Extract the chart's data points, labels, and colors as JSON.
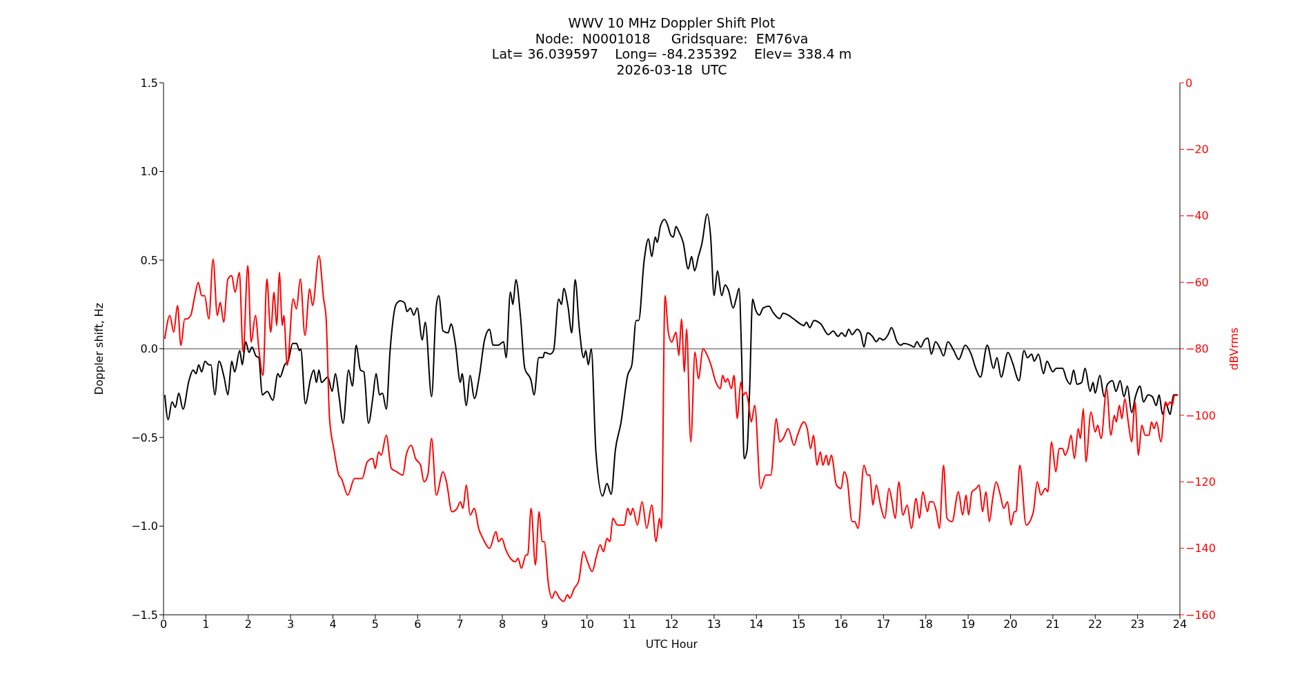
{
  "chart_data": {
    "type": "line",
    "title": "WWV 10 MHz Doppler Shift Plot",
    "subtitle": "Node:  N0001018     Gridsquare:  EM76va\nLat= 36.039597    Long= -84.235392    Elev= 338.4 m\n2026-03-18  UTC",
    "xlabel": "UTC Hour",
    "ylabel": "Doppler shift, Hz",
    "y2label": "dBVrms",
    "xlim": [
      0,
      24
    ],
    "xticks": [
      0,
      1,
      2,
      3,
      4,
      5,
      6,
      7,
      8,
      9,
      10,
      11,
      12,
      13,
      14,
      15,
      16,
      17,
      18,
      19,
      20,
      21,
      22,
      23,
      24
    ],
    "ylim": [
      -1.5,
      1.5
    ],
    "yticks": [
      {
        "value": -1.5,
        "label": "−1.5"
      },
      {
        "value": -1,
        "label": "−1.0"
      },
      {
        "value": -0.5,
        "label": "−0.5"
      },
      {
        "value": 0,
        "label": "0.0"
      },
      {
        "value": 0.5,
        "label": "0.5"
      },
      {
        "value": 1,
        "label": "1.0"
      },
      {
        "value": 1.5,
        "label": "1.5"
      }
    ],
    "y2lim": [
      -160,
      0
    ],
    "y2ticks": [
      {
        "value": -160,
        "label": "−160"
      },
      {
        "value": -140,
        "label": "−140"
      },
      {
        "value": -120,
        "label": "−120"
      },
      {
        "value": -100,
        "label": "−100"
      },
      {
        "value": -80,
        "label": "−80"
      },
      {
        "value": -60,
        "label": "−60"
      },
      {
        "value": -40,
        "label": "−40"
      },
      {
        "value": -20,
        "label": "−20"
      },
      {
        "value": 0,
        "label": "0"
      }
    ],
    "ref_lines": [
      {
        "axis": "y",
        "value": 0,
        "color": "#808080"
      }
    ],
    "series": [
      {
        "color": "#000000",
        "x": [
          0.03,
          0.11,
          0.2,
          0.28,
          0.36,
          0.46,
          0.6,
          0.7,
          0.77,
          0.83,
          0.9,
          0.98,
          1.07,
          1.12,
          1.21,
          1.31,
          1.43,
          1.52,
          1.61,
          1.68,
          1.8,
          1.86,
          1.94,
          2.02,
          2.09,
          2.18,
          2.25,
          2.33,
          2.45,
          2.58,
          2.7,
          2.75,
          2.86,
          2.94,
          3.05,
          3.14,
          3.21,
          3.24,
          3.35,
          3.47,
          3.55,
          3.61,
          3.67,
          3.73,
          3.88,
          3.98,
          4.06,
          4.14,
          4.24,
          4.37,
          4.46,
          4.55,
          4.65,
          4.73,
          4.84,
          4.94,
          5.02,
          5.1,
          5.17,
          5.26,
          5.35,
          5.49,
          5.59,
          5.69,
          5.75,
          5.83,
          5.91,
          5.99,
          6.11,
          6.18,
          6.33,
          6.44,
          6.5,
          6.6,
          6.72,
          6.79,
          6.89,
          7.01,
          7.05,
          7.15,
          7.24,
          7.34,
          7.46,
          7.58,
          7.7,
          7.78,
          7.9,
          8.03,
          8.09,
          8.19,
          8.25,
          8.32,
          8.43,
          8.53,
          8.68,
          8.75,
          8.86,
          8.96,
          9.0,
          9.13,
          9.21,
          9.33,
          9.4,
          9.45,
          9.55,
          9.64,
          9.72,
          9.82,
          9.92,
          9.97,
          10.03,
          10.1,
          10.21,
          10.37,
          10.47,
          10.57,
          10.67,
          10.8,
          10.96,
          11.06,
          11.16,
          11.22,
          11.35,
          11.45,
          11.53,
          11.61,
          11.66,
          11.73,
          11.83,
          11.9,
          11.98,
          12.04,
          12.1,
          12.17,
          12.27,
          12.39,
          12.47,
          12.54,
          12.63,
          12.71,
          12.84,
          12.92,
          13.0,
          13.08,
          13.18,
          13.26,
          13.34,
          13.45,
          13.53,
          13.59,
          13.65,
          13.71,
          13.78,
          13.84,
          13.91,
          13.98,
          14.07,
          14.16,
          14.3,
          14.38,
          14.55,
          14.63,
          14.75,
          14.87,
          15.04,
          15.12,
          15.18,
          15.26,
          15.36,
          15.52,
          15.7,
          15.81,
          15.93,
          16.01,
          16.1,
          16.18,
          16.26,
          16.38,
          16.46,
          16.54,
          16.62,
          16.74,
          16.83,
          16.91,
          16.99,
          17.11,
          17.19,
          17.32,
          17.41,
          17.48,
          17.64,
          17.72,
          17.79,
          17.88,
          17.97,
          18.05,
          18.13,
          18.23,
          18.34,
          18.42,
          18.52,
          18.66,
          18.78,
          18.93,
          19.07,
          19.18,
          19.29,
          19.45,
          19.6,
          19.68,
          19.78,
          19.94,
          20.05,
          20.2,
          20.32,
          20.4,
          20.5,
          20.56,
          20.66,
          20.78,
          20.86,
          21.0,
          21.08,
          21.23,
          21.32,
          21.41,
          21.49,
          21.57,
          21.68,
          21.76,
          21.88,
          21.95,
          22.0,
          22.11,
          22.21,
          22.29,
          22.41,
          22.49,
          22.59,
          22.68,
          22.76,
          22.86,
          22.95,
          23.06,
          23.14,
          23.25,
          23.35,
          23.44,
          23.51,
          23.59,
          23.67,
          23.77,
          23.85,
          23.95
        ],
        "values": [
          -0.26,
          -0.4,
          -0.3,
          -0.33,
          -0.25,
          -0.34,
          -0.18,
          -0.12,
          -0.14,
          -0.09,
          -0.13,
          -0.07,
          -0.09,
          -0.09,
          -0.26,
          -0.07,
          -0.16,
          -0.26,
          -0.07,
          -0.13,
          -0.01,
          -0.09,
          0.04,
          -0.02,
          0.01,
          -0.04,
          -0.05,
          -0.26,
          -0.24,
          -0.29,
          -0.14,
          -0.16,
          -0.09,
          -0.07,
          0.03,
          0.03,
          -0.01,
          0.0,
          -0.31,
          -0.17,
          -0.12,
          -0.19,
          -0.12,
          -0.19,
          -0.16,
          -0.24,
          -0.14,
          -0.26,
          -0.42,
          -0.12,
          -0.21,
          0.02,
          -0.12,
          -0.13,
          -0.42,
          -0.28,
          -0.14,
          -0.26,
          -0.25,
          -0.34,
          -0.01,
          0.25,
          0.27,
          0.26,
          0.21,
          0.23,
          0.19,
          0.23,
          0.05,
          0.15,
          -0.27,
          0.24,
          0.3,
          0.1,
          0.09,
          0.14,
          0.03,
          -0.19,
          -0.14,
          -0.32,
          -0.15,
          -0.28,
          -0.15,
          0.05,
          0.11,
          0.02,
          0.02,
          0.04,
          -0.05,
          0.32,
          0.25,
          0.39,
          0.18,
          -0.11,
          -0.18,
          -0.26,
          -0.05,
          -0.05,
          -0.02,
          -0.03,
          -0.01,
          0.28,
          0.25,
          0.34,
          0.24,
          0.09,
          0.39,
          0.11,
          -0.05,
          -0.01,
          -0.09,
          0.0,
          -0.58,
          -0.83,
          -0.76,
          -0.82,
          -0.57,
          -0.42,
          -0.15,
          -0.09,
          0.16,
          0.16,
          0.5,
          0.62,
          0.52,
          0.63,
          0.6,
          0.69,
          0.73,
          0.7,
          0.64,
          0.63,
          0.69,
          0.66,
          0.6,
          0.45,
          0.52,
          0.44,
          0.52,
          0.59,
          0.76,
          0.63,
          0.3,
          0.44,
          0.3,
          0.36,
          0.33,
          0.23,
          0.29,
          0.34,
          -0.03,
          -0.62,
          -0.57,
          -0.23,
          0.28,
          0.22,
          0.19,
          0.23,
          0.24,
          0.21,
          0.17,
          0.2,
          0.19,
          0.17,
          0.14,
          0.13,
          0.15,
          0.12,
          0.16,
          0.14,
          0.08,
          0.1,
          0.07,
          0.09,
          0.07,
          0.11,
          0.08,
          0.11,
          0.09,
          0.01,
          0.09,
          0.07,
          0.04,
          0.06,
          0.05,
          0.08,
          0.12,
          0.04,
          0.02,
          0.03,
          0.02,
          0.01,
          0.04,
          0.01,
          0.05,
          0.06,
          -0.03,
          0.04,
          0.0,
          -0.04,
          0.04,
          -0.01,
          -0.06,
          0.02,
          -0.03,
          -0.11,
          -0.16,
          0.02,
          -0.11,
          -0.05,
          -0.16,
          -0.02,
          -0.08,
          -0.18,
          -0.01,
          -0.05,
          -0.03,
          -0.07,
          -0.03,
          -0.14,
          -0.07,
          -0.13,
          -0.11,
          -0.11,
          -0.17,
          -0.2,
          -0.12,
          -0.2,
          -0.19,
          -0.11,
          -0.24,
          -0.19,
          -0.25,
          -0.15,
          -0.27,
          -0.2,
          -0.18,
          -0.24,
          -0.18,
          -0.27,
          -0.21,
          -0.36,
          -0.27,
          -0.21,
          -0.3,
          -0.26,
          -0.27,
          -0.32,
          -0.26,
          -0.37,
          -0.31,
          -0.37,
          -0.26,
          -0.26
        ]
      },
      {
        "color": "#ff0000",
        "axis": "y2",
        "x": [
          0.03,
          0.15,
          0.24,
          0.33,
          0.41,
          0.5,
          0.55,
          0.64,
          0.74,
          0.82,
          0.9,
          0.97,
          1.07,
          1.17,
          1.27,
          1.34,
          1.42,
          1.52,
          1.61,
          1.69,
          1.79,
          1.88,
          1.99,
          2.07,
          2.17,
          2.25,
          2.35,
          2.44,
          2.53,
          2.61,
          2.67,
          2.74,
          2.8,
          2.84,
          2.92,
          3.06,
          3.14,
          3.23,
          3.34,
          3.45,
          3.52,
          3.67,
          3.78,
          3.84,
          3.92,
          4.02,
          4.14,
          4.2,
          4.35,
          4.51,
          4.69,
          4.81,
          4.94,
          5.0,
          5.08,
          5.14,
          5.26,
          5.38,
          5.51,
          5.65,
          5.73,
          5.85,
          5.95,
          6.07,
          6.15,
          6.24,
          6.33,
          6.44,
          6.6,
          6.68,
          6.81,
          6.93,
          7.01,
          7.07,
          7.15,
          7.24,
          7.34,
          7.44,
          7.54,
          7.7,
          7.85,
          7.91,
          7.99,
          8.07,
          8.19,
          8.31,
          8.37,
          8.45,
          8.56,
          8.6,
          8.68,
          8.78,
          8.87,
          8.94,
          8.99,
          9.09,
          9.17,
          9.25,
          9.35,
          9.45,
          9.54,
          9.59,
          9.7,
          9.8,
          9.92,
          10.01,
          10.12,
          10.23,
          10.31,
          10.39,
          10.47,
          10.54,
          10.61,
          10.72,
          10.8,
          10.88,
          10.96,
          11.03,
          11.08,
          11.19,
          11.3,
          11.41,
          11.53,
          11.63,
          11.71,
          11.76,
          11.84,
          11.92,
          12.0,
          12.1,
          12.17,
          12.23,
          12.3,
          12.35,
          12.45,
          12.55,
          12.63,
          12.74,
          12.84,
          12.93,
          13.04,
          13.15,
          13.2,
          13.27,
          13.32,
          13.41,
          13.47,
          13.55,
          13.63,
          13.69,
          13.75,
          13.81,
          13.88,
          13.96,
          14.1,
          14.22,
          14.34,
          14.47,
          14.55,
          14.63,
          14.75,
          14.89,
          14.97,
          15.12,
          15.2,
          15.28,
          15.35,
          15.43,
          15.51,
          15.57,
          15.65,
          15.7,
          15.77,
          15.89,
          16.0,
          16.07,
          16.14,
          16.26,
          16.32,
          16.4,
          16.54,
          16.62,
          16.68,
          16.75,
          16.83,
          16.93,
          17.03,
          17.13,
          17.19,
          17.28,
          17.36,
          17.46,
          17.56,
          17.66,
          17.77,
          17.85,
          17.93,
          18.04,
          18.09,
          18.17,
          18.25,
          18.32,
          18.42,
          18.5,
          18.62,
          18.77,
          18.87,
          18.95,
          19.01,
          19.09,
          19.19,
          19.26,
          19.34,
          19.42,
          19.5,
          19.58,
          19.66,
          19.76,
          19.84,
          19.93,
          20.01,
          20.09,
          20.13,
          20.22,
          20.37,
          20.54,
          20.63,
          20.72,
          20.82,
          20.88,
          20.97,
          21.07,
          21.15,
          21.23,
          21.29,
          21.36,
          21.43,
          21.51,
          21.6,
          21.65,
          21.72,
          21.78,
          21.9,
          22.0,
          22.06,
          22.14,
          22.27,
          22.37,
          22.45,
          22.5,
          22.57,
          22.63,
          22.7,
          22.78,
          22.86,
          22.94,
          23.02,
          23.1,
          23.18,
          23.27,
          23.33,
          23.39,
          23.45,
          23.55,
          23.66,
          23.71,
          23.77,
          23.82,
          23.87,
          23.95
        ],
        "values": [
          -77,
          -70,
          -75,
          -67,
          -79,
          -71,
          -71,
          -70,
          -64,
          -60,
          -64,
          -64,
          -71,
          -53,
          -70,
          -66,
          -72,
          -59,
          -58,
          -63,
          -57,
          -81,
          -55,
          -78,
          -70,
          -80,
          -88,
          -59,
          -75,
          -63,
          -73,
          -57,
          -73,
          -70,
          -85,
          -65,
          -68,
          -59,
          -76,
          -62,
          -67,
          -52,
          -65,
          -71,
          -101,
          -110,
          -118,
          -119,
          -124,
          -119,
          -119,
          -114,
          -113,
          -116,
          -111,
          -112,
          -106,
          -116,
          -117,
          -118,
          -112,
          -109,
          -113,
          -115,
          -120,
          -118,
          -107,
          -124,
          -117,
          -120,
          -129,
          -128,
          -126,
          -128,
          -121,
          -130,
          -128,
          -134,
          -137,
          -140,
          -135,
          -138,
          -137,
          -140,
          -143,
          -144,
          -143,
          -146,
          -142,
          -142,
          -128,
          -145,
          -129,
          -138,
          -138,
          -151,
          -155,
          -153,
          -155,
          -156,
          -154,
          -155,
          -152,
          -150,
          -141,
          -144,
          -147,
          -142,
          -139,
          -141,
          -137,
          -138,
          -131,
          -133,
          -133,
          -133,
          -128,
          -130,
          -128,
          -133,
          -126,
          -134,
          -127,
          -138,
          -131,
          -134,
          -64,
          -75,
          -78,
          -75,
          -82,
          -71,
          -87,
          -74,
          -108,
          -81,
          -89,
          -80,
          -82,
          -85,
          -90,
          -92,
          -88,
          -90,
          -89,
          -92,
          -88,
          -101,
          -90,
          -94,
          -93,
          -96,
          -102,
          -97,
          -122,
          -118,
          -118,
          -101,
          -108,
          -107,
          -104,
          -109,
          -106,
          -102,
          -104,
          -110,
          -106,
          -115,
          -111,
          -115,
          -112,
          -115,
          -112,
          -121,
          -122,
          -117,
          -119,
          -132,
          -132,
          -134,
          -115,
          -118,
          -118,
          -127,
          -121,
          -127,
          -131,
          -122,
          -125,
          -131,
          -120,
          -130,
          -127,
          -134,
          -125,
          -131,
          -123,
          -129,
          -126,
          -126,
          -129,
          -134,
          -115,
          -131,
          -132,
          -123,
          -130,
          -124,
          -130,
          -123,
          -122,
          -121,
          -129,
          -123,
          -132,
          -125,
          -120,
          -124,
          -128,
          -126,
          -133,
          -129,
          -129,
          -115,
          -133,
          -129,
          -120,
          -124,
          -122,
          -123,
          -108,
          -117,
          -110,
          -110,
          -112,
          -110,
          -106,
          -113,
          -104,
          -107,
          -98,
          -114,
          -99,
          -105,
          -103,
          -107,
          -92,
          -106,
          -100,
          -102,
          -97,
          -101,
          -95,
          -102,
          -108,
          -96,
          -112,
          -103,
          -106,
          -106,
          -102,
          -104,
          -102,
          -108,
          -96,
          -97,
          -96,
          -97,
          -94,
          -94
        ]
      }
    ]
  }
}
